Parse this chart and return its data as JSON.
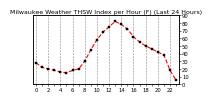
{
  "title": "Milwaukee Weather THSW Index per Hour (F) (Last 24 Hours)",
  "x": [
    0,
    1,
    2,
    3,
    4,
    5,
    6,
    7,
    8,
    9,
    10,
    11,
    12,
    13,
    14,
    15,
    16,
    17,
    18,
    19,
    20,
    21,
    22,
    23
  ],
  "y": [
    28,
    22,
    20,
    18,
    16,
    15,
    18,
    20,
    30,
    45,
    58,
    68,
    75,
    82,
    78,
    72,
    62,
    55,
    50,
    46,
    42,
    38,
    18,
    5
  ],
  "line_color": "#ff0000",
  "marker_color": "#000000",
  "bg_color": "#ffffff",
  "plot_bg": "#ffffff",
  "ylim": [
    0,
    90
  ],
  "xlim": [
    -0.5,
    23.5
  ],
  "title_fontsize": 4.5,
  "tick_fontsize": 3.8,
  "line_width": 0.8,
  "marker_size": 1.8,
  "grid_color": "#888888",
  "grid_positions": [
    0,
    2,
    4,
    6,
    8,
    10,
    12,
    14,
    16,
    18,
    20,
    22
  ]
}
